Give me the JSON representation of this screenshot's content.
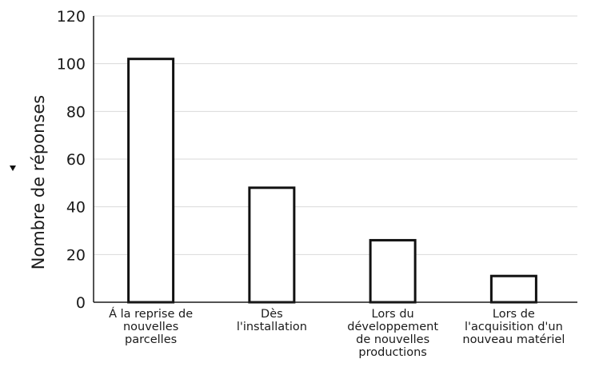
{
  "chart_data": {
    "type": "bar",
    "title": "",
    "xlabel": "",
    "ylabel": "Nombre de réponses",
    "ylim": [
      0,
      120
    ],
    "yticks": [
      0,
      20,
      40,
      60,
      80,
      100,
      120
    ],
    "grid": true,
    "categories": [
      [
        "Á la reprise de",
        "nouvelles",
        "parcelles"
      ],
      [
        "Dès",
        "l'installation"
      ],
      [
        "Lors du",
        "développement",
        "de nouvelles",
        "productions"
      ],
      [
        "Lors de",
        "l'acquisition d'un",
        "nouveau matériel"
      ]
    ],
    "values": [
      102,
      48,
      26,
      11
    ],
    "colors": {
      "bar_fill": "#ffffff",
      "bar_stroke": "#111111",
      "grid": "#d9d9d9"
    },
    "marker_icon": "triangle-down-icon"
  }
}
